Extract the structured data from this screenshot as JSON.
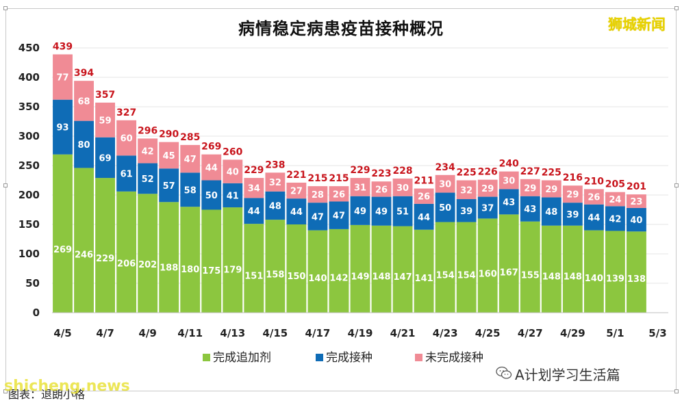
{
  "header": {
    "title": "病情稳定病患疫苗接种概况",
    "brand": "狮城新闻"
  },
  "footer": {
    "source": "图表：退朗小格",
    "watermark": "shicheng.news",
    "account": "A计划学习生活篇"
  },
  "colors": {
    "booster": "#8cc63f",
    "complete": "#0f6cb6",
    "incomplete": "#f08b95",
    "total_label": "#c8141c",
    "grid": "#e6e6e6"
  },
  "chart_data": {
    "type": "bar",
    "stacked": true,
    "title": "病情稳定病患疫苗接种概况",
    "xlabel": "",
    "ylabel": "",
    "ylim": [
      0,
      450
    ],
    "yticks": [
      0,
      50,
      100,
      150,
      200,
      250,
      300,
      350,
      400,
      450
    ],
    "grid": true,
    "legend_position": "bottom",
    "categories": [
      "4/5",
      "4/6",
      "4/7",
      "4/8",
      "4/9",
      "4/10",
      "4/11",
      "4/12",
      "4/13",
      "4/14",
      "4/15",
      "4/16",
      "4/17",
      "4/18",
      "4/19",
      "4/20",
      "4/21",
      "4/22",
      "4/23",
      "4/24",
      "4/25",
      "4/26",
      "4/27",
      "4/28",
      "4/29",
      "4/30",
      "5/1",
      "5/2",
      "5/3"
    ],
    "xtick_labels": [
      "4/5",
      "4/7",
      "4/9",
      "4/11",
      "4/13",
      "4/15",
      "4/17",
      "4/19",
      "4/21",
      "4/23",
      "4/25",
      "4/27",
      "4/29",
      "5/1",
      "5/3"
    ],
    "series": [
      {
        "name": "完成追加剂",
        "values": [
          269,
          246,
          229,
          206,
          202,
          188,
          180,
          175,
          179,
          151,
          158,
          150,
          140,
          142,
          149,
          148,
          147,
          141,
          154,
          154,
          160,
          167,
          155,
          148,
          148,
          140,
          139,
          138,
          null
        ]
      },
      {
        "name": "完成接种",
        "values": [
          93,
          80,
          69,
          61,
          52,
          57,
          58,
          50,
          41,
          44,
          48,
          44,
          47,
          47,
          49,
          49,
          51,
          44,
          50,
          39,
          37,
          43,
          43,
          48,
          39,
          44,
          42,
          40,
          null
        ]
      },
      {
        "name": "未完成接种",
        "values": [
          77,
          68,
          59,
          60,
          42,
          45,
          47,
          44,
          40,
          34,
          32,
          27,
          28,
          26,
          31,
          26,
          30,
          26,
          30,
          32,
          29,
          30,
          29,
          29,
          29,
          26,
          24,
          23,
          null
        ]
      }
    ],
    "totals": [
      439,
      394,
      357,
      327,
      296,
      290,
      285,
      269,
      260,
      229,
      238,
      221,
      215,
      215,
      229,
      223,
      228,
      211,
      234,
      225,
      226,
      240,
      227,
      225,
      216,
      210,
      205,
      201,
      null
    ]
  }
}
